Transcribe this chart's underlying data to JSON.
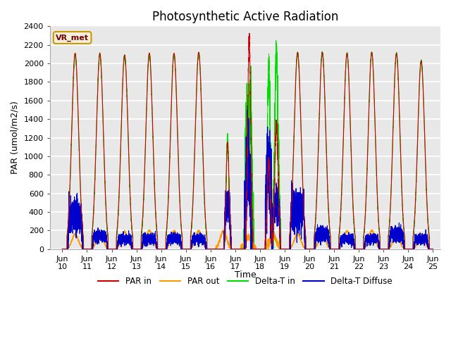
{
  "title": "Photosynthetic Active Radiation",
  "ylabel": "PAR (umol/m2/s)",
  "xlabel": "Time",
  "annotation": "VR_met",
  "xlim_start": 9.5,
  "xlim_end": 25.3,
  "ylim": [
    0,
    2400
  ],
  "yticks": [
    0,
    200,
    400,
    600,
    800,
    1000,
    1200,
    1400,
    1600,
    1800,
    2000,
    2200,
    2400
  ],
  "xtick_positions": [
    10,
    11,
    12,
    13,
    14,
    15,
    16,
    17,
    18,
    19,
    20,
    21,
    22,
    23,
    24,
    25
  ],
  "xtick_labels": [
    "Jun\n10",
    "Jun\n11",
    "Jun\n12",
    "Jun\n13",
    "Jun\n14",
    "Jun\n15",
    "Jun\n16",
    "Jun\n17",
    "Jun\n18",
    "Jun\n19",
    "Jun\n20",
    "Jun\n21",
    "Jun\n22",
    "Jun\n23",
    "Jun\n24",
    "Jun\n25"
  ],
  "colors": {
    "PAR_in": "#cc0000",
    "PAR_out": "#ff9900",
    "Delta_T_in": "#00dd00",
    "Delta_T_Diffuse": "#0000cc"
  },
  "legend_labels": [
    "PAR in",
    "PAR out",
    "Delta-T in",
    "Delta-T Diffuse"
  ],
  "plot_bg": "#e8e8e8",
  "upper_bg": "#f0f0f0",
  "title_fontsize": 12,
  "axis_label_fontsize": 9,
  "tick_fontsize": 8
}
